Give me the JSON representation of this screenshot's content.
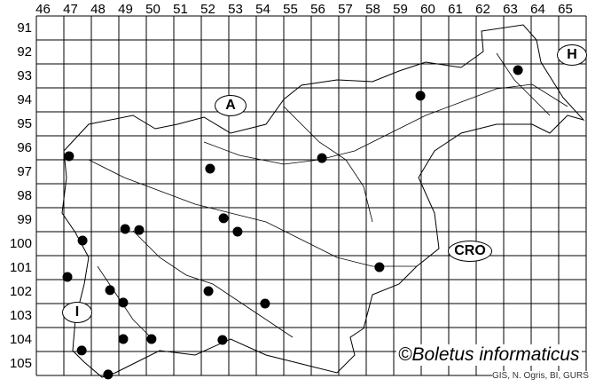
{
  "map": {
    "grid": {
      "columns": [
        "46",
        "47",
        "48",
        "49",
        "50",
        "51",
        "52",
        "53",
        "54",
        "55",
        "56",
        "57",
        "58",
        "59",
        "60",
        "61",
        "62",
        "63",
        "64",
        "65"
      ],
      "rows": [
        "91",
        "92",
        "93",
        "94",
        "95",
        "96",
        "97",
        "98",
        "99",
        "100",
        "101",
        "102",
        "103",
        "104",
        "105"
      ]
    },
    "regions": [
      {
        "label": "A"
      },
      {
        "label": "H"
      },
      {
        "label": "CRO"
      },
      {
        "label": "I"
      }
    ],
    "records": [
      [
        47.19,
        96.85
      ],
      [
        47.68,
        100.37
      ],
      [
        47.13,
        101.89
      ],
      [
        48.68,
        102.44
      ],
      [
        49.16,
        102.96
      ],
      [
        49.23,
        99.89
      ],
      [
        49.74,
        99.93
      ],
      [
        49.16,
        104.48
      ],
      [
        50.19,
        104.48
      ],
      [
        47.65,
        104.96
      ],
      [
        48.61,
        105.96
      ],
      [
        52.32,
        97.37
      ],
      [
        52.81,
        99.44
      ],
      [
        53.32,
        100.0
      ],
      [
        52.26,
        102.48
      ],
      [
        52.77,
        104.52
      ],
      [
        54.32,
        103.0
      ],
      [
        56.39,
        96.93
      ],
      [
        58.48,
        101.48
      ],
      [
        59.97,
        94.33
      ],
      [
        63.52,
        93.26
      ]
    ],
    "marker_color": "#000000",
    "line_color": "#000000"
  },
  "credits": {
    "main": "©Boletus informaticus",
    "sub": "GIS, N. Ogris, BI, GURS"
  }
}
